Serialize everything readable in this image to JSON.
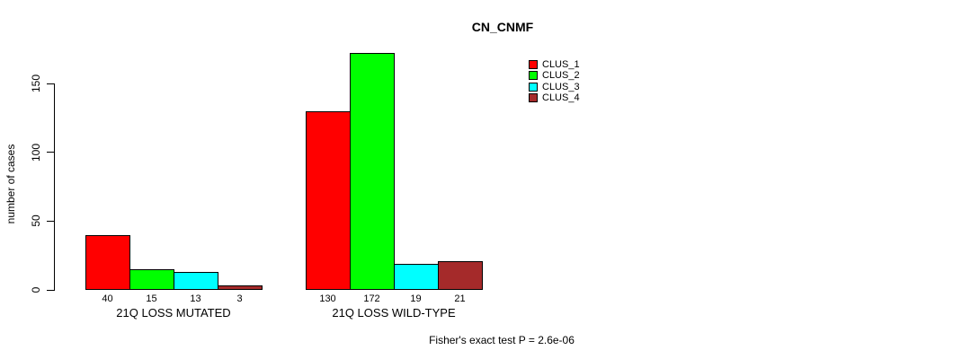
{
  "chart_data": {
    "type": "bar",
    "title": "CN_CNMF",
    "xlabel": "",
    "ylabel": "number of cases",
    "ylim": [
      0,
      172
    ],
    "yticks": [
      0,
      50,
      100,
      150
    ],
    "grid": false,
    "legend_position": "top-right",
    "categories": [
      "21Q LOSS MUTATED",
      "21Q LOSS WILD-TYPE"
    ],
    "series": [
      {
        "name": "CLUS_1",
        "color": "#FF0000",
        "values": [
          40,
          130
        ]
      },
      {
        "name": "CLUS_2",
        "color": "#00FF00",
        "values": [
          15,
          172
        ]
      },
      {
        "name": "CLUS_3",
        "color": "#00FFFF",
        "values": [
          13,
          19
        ]
      },
      {
        "name": "CLUS_4",
        "color": "#A52A2A",
        "values": [
          3,
          21
        ]
      }
    ],
    "bar_value_labels": [
      [
        40,
        15,
        13,
        3
      ],
      [
        130,
        172,
        19,
        21
      ]
    ],
    "annotation": "Fisher's exact test P = 2.6e-06"
  },
  "colors": {
    "axis": "#000000",
    "text": "#000000",
    "background": "#FFFFFF"
  }
}
